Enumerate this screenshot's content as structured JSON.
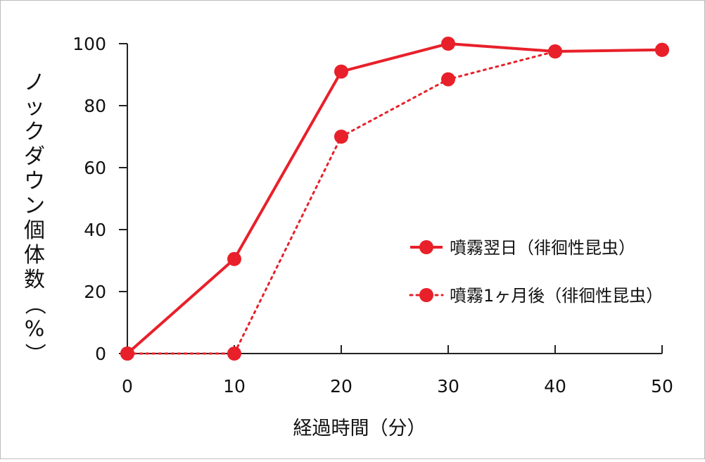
{
  "chart_data": {
    "type": "line",
    "xlabel": "経過時間（分）",
    "ylabel": "ノックダウン個体数（%）",
    "x": [
      0,
      10,
      20,
      30,
      40,
      50
    ],
    "xlim": [
      0,
      50
    ],
    "ylim": [
      0,
      100
    ],
    "xticks": [
      0,
      10,
      20,
      30,
      40,
      50
    ],
    "yticks": [
      0,
      20,
      40,
      60,
      80,
      100
    ],
    "grid": false,
    "legend_position": "right",
    "series": [
      {
        "name": "噴霧翌日（徘徊性昆虫）",
        "values": [
          0,
          30.5,
          91,
          100,
          97.5,
          98
        ],
        "style": "solid",
        "color": "#e8202a"
      },
      {
        "name": "噴霧1ヶ月後（徘徊性昆虫）",
        "values": [
          0,
          0,
          70,
          88.5,
          97.5,
          98
        ],
        "style": "dotted",
        "color": "#e8202a"
      }
    ]
  }
}
